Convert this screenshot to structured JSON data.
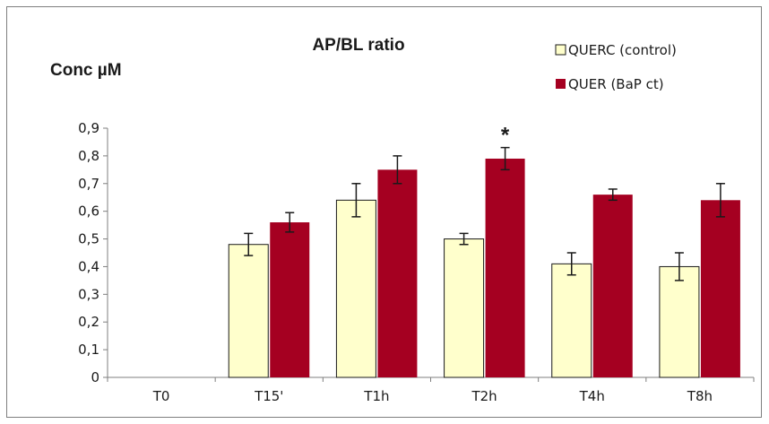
{
  "chart_data": {
    "type": "bar",
    "title": "AP/BL ratio",
    "ylabel": "Conc µM",
    "xlabel": "",
    "categories": [
      "T0",
      "T15'",
      "T1h",
      "T2h",
      "T4h",
      "T8h"
    ],
    "ylim": [
      0,
      0.9
    ],
    "yticks": [
      "0",
      "0,1",
      "0,2",
      "0,3",
      "0,4",
      "0,5",
      "0,6",
      "0,7",
      "0,8",
      "0,9"
    ],
    "grid": false,
    "legend_position": "top-right",
    "series": [
      {
        "name": "QUERC (control)",
        "color": "#ffffcc",
        "values": [
          null,
          0.48,
          0.64,
          0.5,
          0.41,
          0.4
        ],
        "errors": [
          null,
          0.04,
          0.06,
          0.02,
          0.04,
          0.05
        ]
      },
      {
        "name": "QUER (BaP ct)",
        "color": "#a50021",
        "values": [
          null,
          0.56,
          0.75,
          0.79,
          0.66,
          0.64
        ],
        "errors": [
          null,
          0.035,
          0.05,
          0.04,
          0.02,
          0.06
        ]
      }
    ],
    "annotations": [
      {
        "text": "*",
        "category": "T2h",
        "series": 1
      }
    ]
  }
}
